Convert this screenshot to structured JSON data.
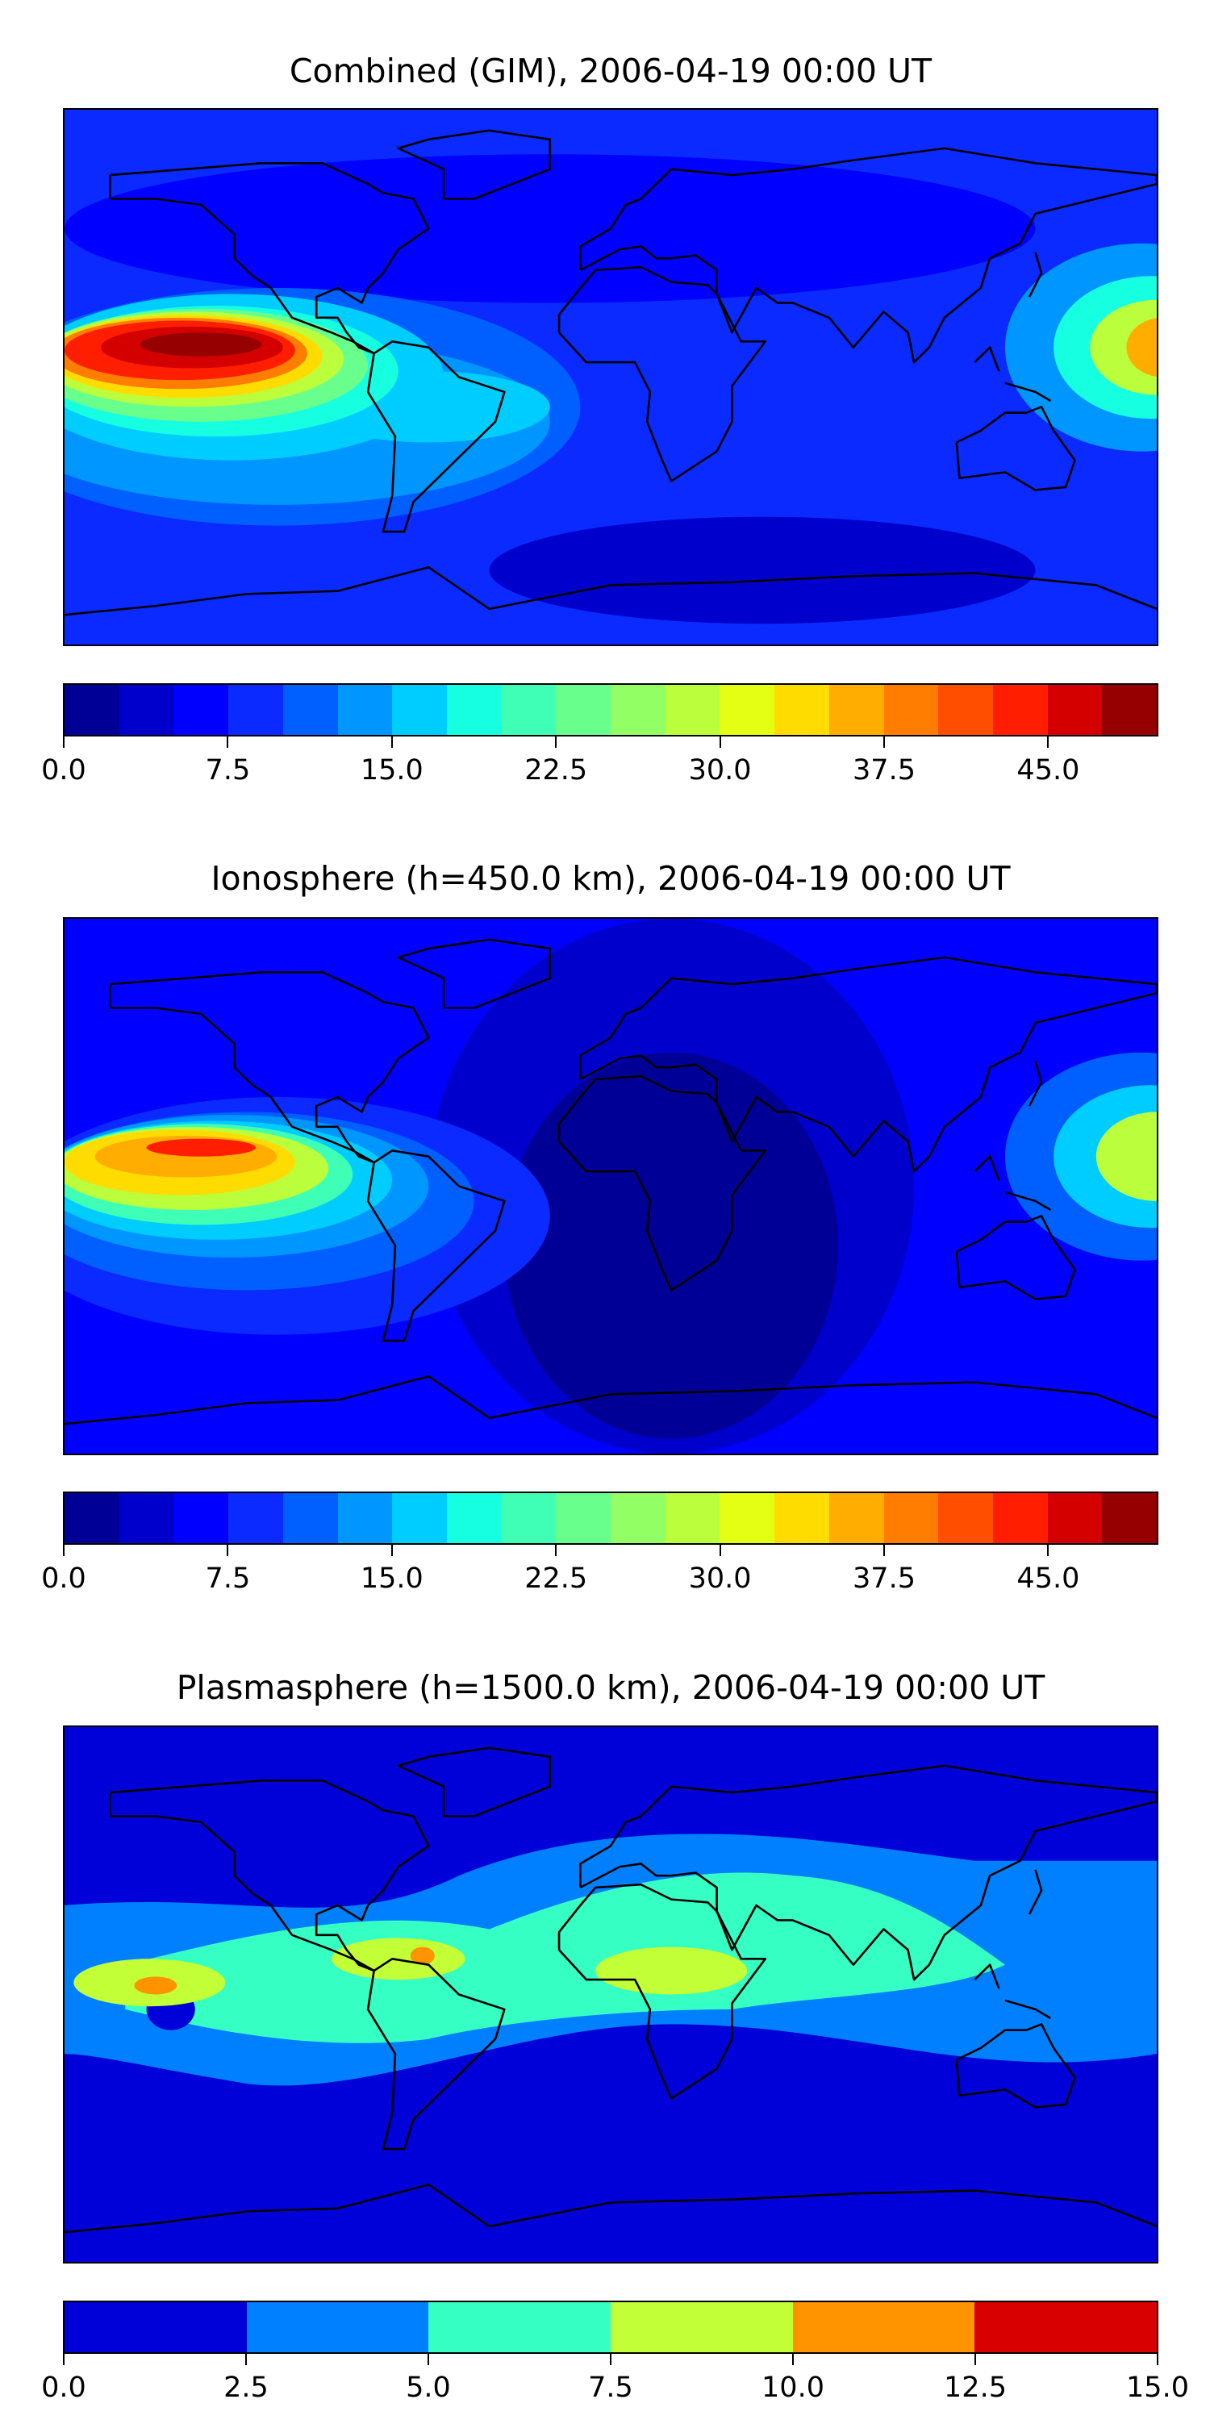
{
  "chart_data": [
    {
      "type": "heatmap",
      "title": "Combined (GIM), 2006-04-19 00:00 UT",
      "projection": "equirectangular world map with coastlines",
      "colorbar": {
        "range": [
          0,
          50
        ],
        "levels": [
          0,
          2.5,
          5,
          7.5,
          10,
          12.5,
          15,
          17.5,
          20,
          22.5,
          25,
          27.5,
          30,
          32.5,
          35,
          37.5,
          40,
          42.5,
          45,
          47.5,
          50
        ],
        "colors": [
          "#000096",
          "#0000cd",
          "#0000ff",
          "#0a2aff",
          "#005fff",
          "#0096ff",
          "#00cdff",
          "#16ffe1",
          "#3fffb7",
          "#69ff8d",
          "#92ff65",
          "#bbff3c",
          "#e4ff13",
          "#ffdc00",
          "#ffad00",
          "#ff7d00",
          "#ff4e00",
          "#ff1e00",
          "#d40000",
          "#960000"
        ],
        "ticks": [
          0.0,
          7.5,
          15.0,
          22.5,
          30.0,
          37.5,
          45.0
        ],
        "tick_labels": [
          "0.0",
          "7.5",
          "15.0",
          "22.5",
          "30.0",
          "37.5",
          "45.0"
        ]
      }
    },
    {
      "type": "heatmap",
      "title": "Ionosphere  (h=450.0 km), 2006-04-19 00:00 UT",
      "projection": "equirectangular world map with coastlines",
      "colorbar": {
        "range": [
          0,
          50
        ],
        "levels": [
          0,
          2.5,
          5,
          7.5,
          10,
          12.5,
          15,
          17.5,
          20,
          22.5,
          25,
          27.5,
          30,
          32.5,
          35,
          37.5,
          40,
          42.5,
          45,
          47.5,
          50
        ],
        "colors": [
          "#000096",
          "#0000cd",
          "#0000ff",
          "#0a2aff",
          "#005fff",
          "#0096ff",
          "#00cdff",
          "#16ffe1",
          "#3fffb7",
          "#69ff8d",
          "#92ff65",
          "#bbff3c",
          "#e4ff13",
          "#ffdc00",
          "#ffad00",
          "#ff7d00",
          "#ff4e00",
          "#ff1e00",
          "#d40000",
          "#960000"
        ],
        "ticks": [
          0.0,
          7.5,
          15.0,
          22.5,
          30.0,
          37.5,
          45.0
        ],
        "tick_labels": [
          "0.0",
          "7.5",
          "15.0",
          "22.5",
          "30.0",
          "37.5",
          "45.0"
        ]
      }
    },
    {
      "type": "heatmap",
      "title": "Plasmasphere (h=1500.0 km), 2006-04-19 00:00 UT",
      "projection": "equirectangular world map with coastlines",
      "colorbar": {
        "range": [
          0,
          15
        ],
        "levels": [
          0,
          2.5,
          5,
          7.5,
          10,
          12.5,
          15
        ],
        "colors": [
          "#0000d8",
          "#0080ff",
          "#36ffc3",
          "#c3ff36",
          "#ff9400",
          "#d80000"
        ],
        "ticks": [
          0.0,
          2.5,
          5.0,
          7.5,
          10.0,
          12.5,
          15.0
        ],
        "tick_labels": [
          "0.0",
          "2.5",
          "5.0",
          "7.5",
          "10.0",
          "12.5",
          "15.0"
        ]
      }
    }
  ]
}
